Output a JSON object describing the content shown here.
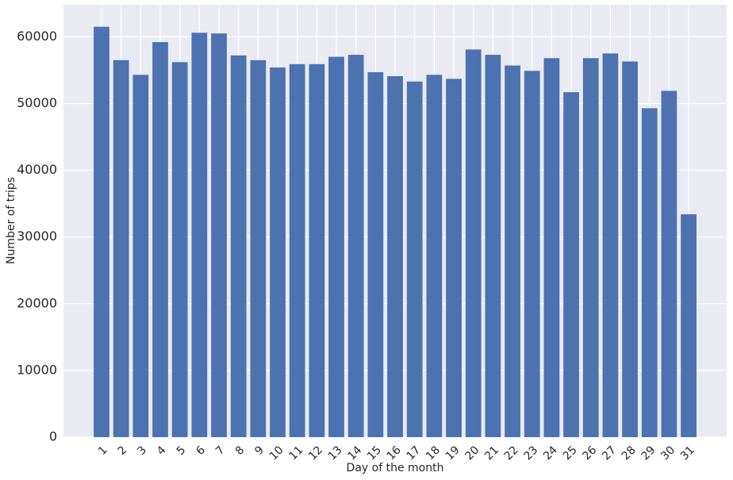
{
  "chart_data": {
    "type": "bar",
    "xlabel": "Day of the month",
    "ylabel": "Number of trips",
    "categories": [
      "1",
      "2",
      "3",
      "4",
      "5",
      "6",
      "7",
      "8",
      "9",
      "10",
      "11",
      "12",
      "13",
      "14",
      "15",
      "16",
      "17",
      "18",
      "19",
      "20",
      "21",
      "22",
      "23",
      "24",
      "25",
      "26",
      "27",
      "28",
      "29",
      "30",
      "31"
    ],
    "values": [
      61500,
      56500,
      54300,
      59200,
      56200,
      60600,
      60500,
      57200,
      56500,
      55400,
      55900,
      55900,
      57000,
      57300,
      54700,
      54100,
      53300,
      54300,
      53700,
      58100,
      57300,
      55700,
      54900,
      56800,
      51700,
      56800,
      57500,
      56300,
      49300,
      51900,
      33400
    ],
    "color": "#4c72b0",
    "ylim": [
      0,
      64800
    ],
    "yticks": [
      0,
      10000,
      20000,
      30000,
      40000,
      50000,
      60000
    ],
    "grid": true,
    "background": "#eaeaf2"
  }
}
